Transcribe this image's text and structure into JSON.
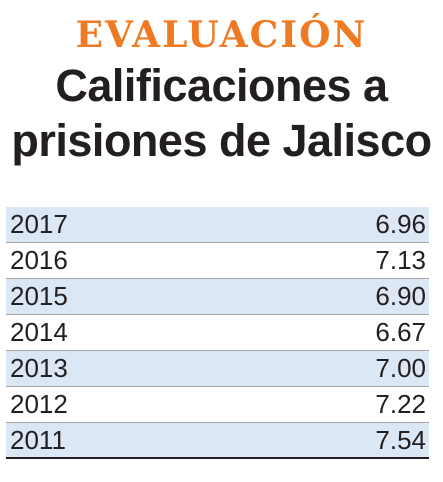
{
  "header": {
    "kicker": "EVALUACIÓN",
    "title_line1": "Calificaciones a",
    "title_line2": "prisiones de Jalisco"
  },
  "colors": {
    "kicker": "#f07a22",
    "title": "#231f20",
    "row_shade": "#dce7f5",
    "divider": "#a5a5a5"
  },
  "chart_data": {
    "type": "table",
    "rows": [
      {
        "year": "2017",
        "value": "6.96"
      },
      {
        "year": "2016",
        "value": "7.13"
      },
      {
        "year": "2015",
        "value": "6.90"
      },
      {
        "year": "2014",
        "value": "6.67"
      },
      {
        "year": "2013",
        "value": "7.00"
      },
      {
        "year": "2012",
        "value": "7.22"
      },
      {
        "year": "2011",
        "value": "7.54"
      }
    ]
  }
}
